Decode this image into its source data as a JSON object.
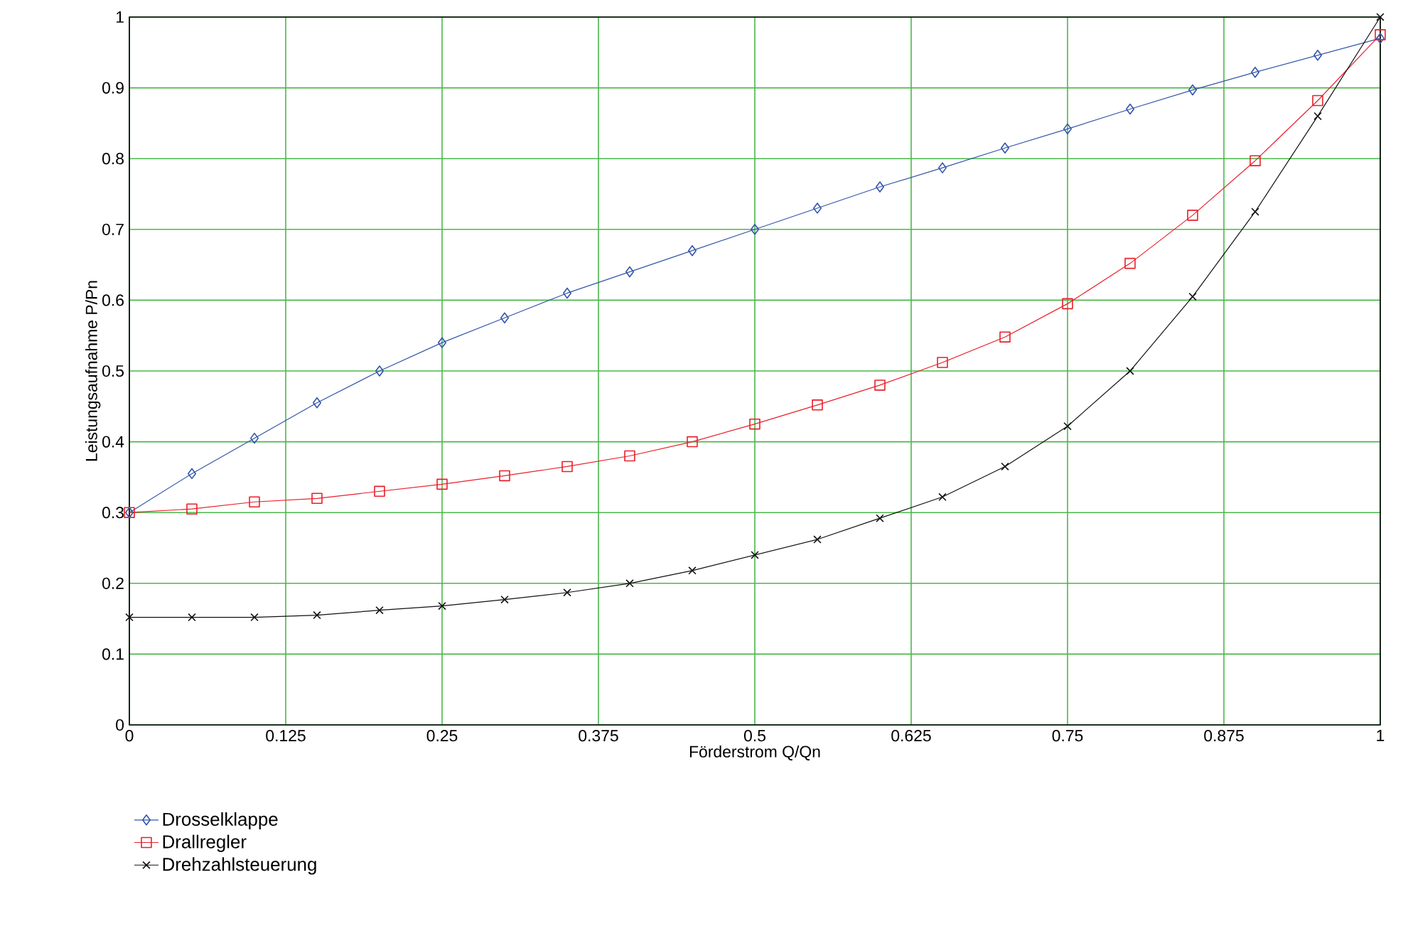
{
  "chart_data": {
    "type": "line",
    "xlabel": "Förderstrom Q/Qn",
    "ylabel": "Leistungsaufnahme P/Pn",
    "x": [
      0,
      0.05,
      0.1,
      0.15,
      0.2,
      0.25,
      0.3,
      0.35,
      0.4,
      0.45,
      0.5,
      0.55,
      0.6,
      0.65,
      0.7,
      0.75,
      0.8,
      0.85,
      0.9,
      0.95,
      1
    ],
    "series": [
      {
        "name": "Drosselklappe",
        "color": "#3355aa",
        "marker": "diamond",
        "values": [
          0.3,
          0.355,
          0.405,
          0.455,
          0.5,
          0.54,
          0.575,
          0.61,
          0.64,
          0.67,
          0.7,
          0.73,
          0.76,
          0.787,
          0.815,
          0.842,
          0.87,
          0.897,
          0.922,
          0.946,
          0.97
        ]
      },
      {
        "name": "Drallregler",
        "color": "#e8202a",
        "marker": "square",
        "values": [
          0.3,
          0.305,
          0.315,
          0.32,
          0.33,
          0.34,
          0.352,
          0.365,
          0.38,
          0.4,
          0.425,
          0.452,
          0.48,
          0.512,
          0.548,
          0.595,
          0.652,
          0.72,
          0.797,
          0.882,
          0.975
        ]
      },
      {
        "name": "Drehzahlsteuerung",
        "color": "#111111",
        "marker": "cross",
        "values": [
          0.152,
          0.152,
          0.152,
          0.155,
          0.162,
          0.168,
          0.177,
          0.187,
          0.2,
          0.218,
          0.24,
          0.262,
          0.292,
          0.322,
          0.365,
          0.422,
          0.5,
          0.605,
          0.725,
          0.86,
          1.0
        ]
      }
    ],
    "xlim": [
      0,
      1
    ],
    "xticks": [
      0,
      0.125,
      0.25,
      0.375,
      0.5,
      0.625,
      0.75,
      0.875,
      1
    ],
    "ylim": [
      0,
      1
    ],
    "yticks": [
      0,
      0.1,
      0.2,
      0.3,
      0.4,
      0.5,
      0.6,
      0.7,
      0.8,
      0.9,
      1
    ],
    "grid": true,
    "legend": "bottom left",
    "line_style": "solid"
  }
}
